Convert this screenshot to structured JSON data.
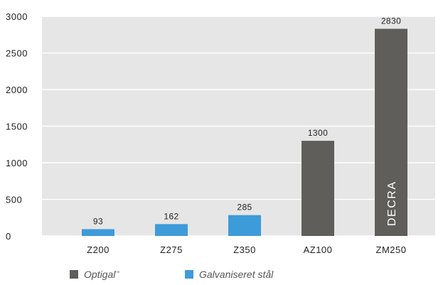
{
  "chart_data": {
    "type": "bar",
    "categories": [
      "Z200",
      "Z275",
      "Z350",
      "AZ100",
      "ZM250"
    ],
    "values": [
      93,
      162,
      285,
      1300,
      2830
    ],
    "value_labels": [
      "93",
      "162",
      "285",
      "1300",
      "2830"
    ],
    "series_of_bar": [
      "Galvaniseret stål",
      "Galvaniseret stål",
      "Galvaniseret stål",
      "Optigal",
      "Optigal"
    ],
    "series": [
      {
        "name": "Optigal",
        "color": "#5f5e5b"
      },
      {
        "name": "Galvaniseret stål",
        "color": "#3e9bd9"
      }
    ],
    "bar_inner_label": {
      "category": "ZM250",
      "text": "DECRA"
    },
    "ylim": [
      0,
      3000
    ],
    "yticks": [
      0,
      500,
      1000,
      1500,
      2000,
      2500,
      3000
    ],
    "ytick_labels": [
      "0",
      "500",
      "1000",
      "1500",
      "2000",
      "2500",
      "3000"
    ],
    "xlabel": "",
    "ylabel": "",
    "title": "",
    "grid": "horizontal",
    "plot_background": "#e6e6e6",
    "grid_color": "#ffffff",
    "legend_position": "bottom-left"
  },
  "legend": {
    "optigal_label": "Optigal",
    "optigal_mark": "™",
    "galv_label": "Galvaniseret stål"
  }
}
